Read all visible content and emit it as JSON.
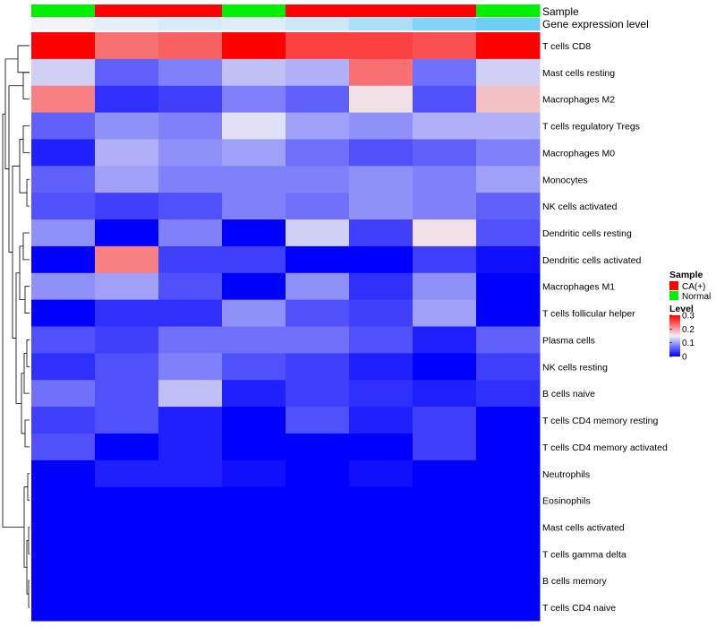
{
  "chart_data": {
    "type": "heatmap",
    "title": "",
    "annotation_rows": {
      "sample": {
        "label": "Sample",
        "values": [
          "Normal",
          "CA(+)",
          "CA(+)",
          "Normal",
          "CA(+)",
          "CA(+)",
          "CA(+)",
          "Normal"
        ]
      },
      "gene_expression": {
        "label": "Gene expression level",
        "values": [
          0.0,
          0.1,
          0.2,
          0.15,
          0.3,
          0.55,
          0.85,
          1.0
        ]
      }
    },
    "rows": [
      "T cells CD8",
      "Mast cells resting",
      "Macrophages M2",
      "T cells regulatory  Tregs",
      "Macrophages M0",
      "Monocytes",
      "NK cells activated",
      "Dendritic cells resting",
      "Dendritic cells activated",
      "Macrophages M1",
      "T cells follicular helper",
      "Plasma cells",
      "NK cells resting",
      "B cells naive",
      "T cells CD4 memory resting",
      "T cells CD4 memory activated",
      "Neutrophils",
      "Eosinophils",
      "Mast cells activated",
      "T cells gamma delta",
      "B cells memory",
      "T cells CD4 naive"
    ],
    "values": [
      [
        0.3,
        0.23,
        0.24,
        0.3,
        0.26,
        0.26,
        0.25,
        0.3
      ],
      [
        0.13,
        0.06,
        0.08,
        0.12,
        0.11,
        0.23,
        0.07,
        0.13
      ],
      [
        0.22,
        0.03,
        0.04,
        0.08,
        0.06,
        0.16,
        0.05,
        0.18
      ],
      [
        0.06,
        0.09,
        0.08,
        0.14,
        0.1,
        0.09,
        0.11,
        0.11
      ],
      [
        0.02,
        0.11,
        0.09,
        0.1,
        0.07,
        0.05,
        0.06,
        0.08
      ],
      [
        0.06,
        0.1,
        0.08,
        0.08,
        0.08,
        0.09,
        0.08,
        0.1
      ],
      [
        0.05,
        0.04,
        0.05,
        0.08,
        0.07,
        0.09,
        0.08,
        0.06
      ],
      [
        0.09,
        0.0,
        0.08,
        0.0,
        0.13,
        0.04,
        0.16,
        0.05
      ],
      [
        0.0,
        0.22,
        0.04,
        0.04,
        0.0,
        0.0,
        0.04,
        0.01
      ],
      [
        0.09,
        0.1,
        0.05,
        0.0,
        0.09,
        0.03,
        0.09,
        0.0
      ],
      [
        0.0,
        0.03,
        0.03,
        0.09,
        0.05,
        0.04,
        0.1,
        0.0
      ],
      [
        0.05,
        0.04,
        0.07,
        0.07,
        0.07,
        0.05,
        0.02,
        0.06
      ],
      [
        0.03,
        0.05,
        0.08,
        0.05,
        0.04,
        0.02,
        0.0,
        0.04
      ],
      [
        0.07,
        0.05,
        0.12,
        0.02,
        0.04,
        0.03,
        0.02,
        0.03
      ],
      [
        0.04,
        0.05,
        0.02,
        0.0,
        0.05,
        0.02,
        0.04,
        0.0
      ],
      [
        0.05,
        0.0,
        0.02,
        0.0,
        0.0,
        0.0,
        0.04,
        0.0
      ],
      [
        0.0,
        0.02,
        0.02,
        0.01,
        0.0,
        0.01,
        0.0,
        0.0
      ],
      [
        0.0,
        0.0,
        0.0,
        0.0,
        0.0,
        0.0,
        0.0,
        0.0
      ],
      [
        0.0,
        0.0,
        0.0,
        0.0,
        0.0,
        0.0,
        0.0,
        0.0
      ],
      [
        0.0,
        0.0,
        0.0,
        0.0,
        0.0,
        0.0,
        0.0,
        0.0
      ],
      [
        0.0,
        0.0,
        0.0,
        0.0,
        0.0,
        0.0,
        0.0,
        0.0
      ],
      [
        0.0,
        0.0,
        0.0,
        0.0,
        0.0,
        0.0,
        0.0,
        0.0
      ]
    ],
    "color_scale": {
      "min": 0,
      "mid": 0.15,
      "max": 0.3,
      "low_color": "#0000ff",
      "mid_color": "#f0f0f5",
      "high_color": "#ff0000"
    },
    "sample_colors": {
      "CA(+)": "#ff0000",
      "Normal": "#00ee00"
    },
    "gene_expression_colors": {
      "low": "#f2f2f8",
      "high": "#6ecff6"
    },
    "legend": {
      "sample_title": "Sample",
      "sample_items": [
        "CA(+)",
        "Normal"
      ],
      "level_title": "Level",
      "level_ticks": [
        {
          "value": 0.3,
          "label": "0.3"
        },
        {
          "value": 0.2,
          "label": "0.2"
        },
        {
          "value": 0.1,
          "label": "0.1"
        },
        {
          "value": 0.0,
          "label": "0"
        }
      ],
      "position": "right"
    },
    "row_dendrogram": true
  }
}
